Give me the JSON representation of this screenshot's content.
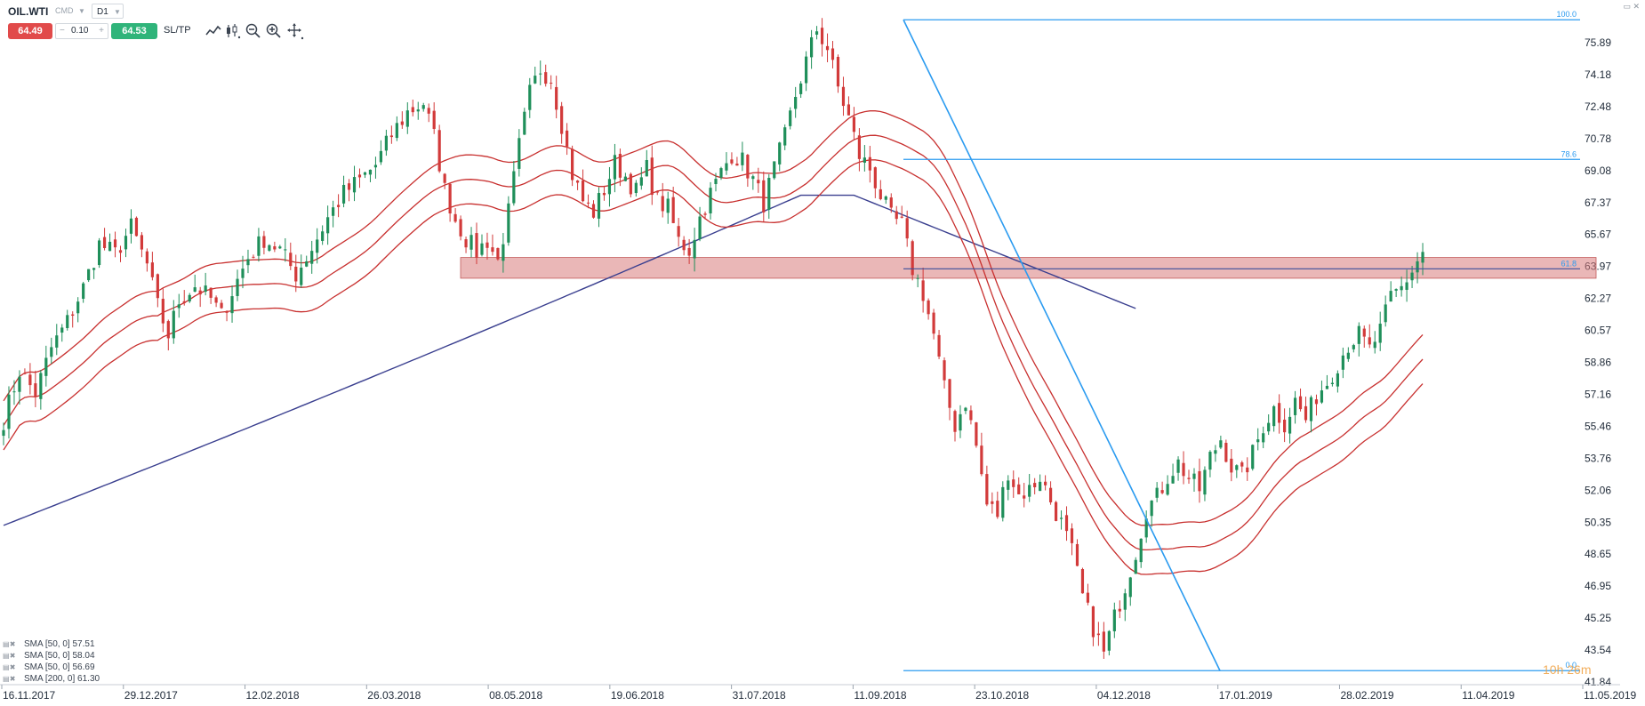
{
  "toolbar": {
    "symbol": "OIL.WTI",
    "market": "CMD",
    "timeframe": "D1",
    "sell_price": "64.49",
    "spread": "0.10",
    "spread_minus": "−",
    "spread_plus": "+",
    "buy_price": "64.53",
    "sltp_label": "SL/TP",
    "tool_icons": [
      "line-chart-icon",
      "candles-icon",
      "zoom-out-icon",
      "zoom-in-icon",
      "crosshair-icon"
    ],
    "window_controls": "▭ ✕"
  },
  "colors": {
    "sell": "#e14a4a",
    "buy": "#2fb47a",
    "bull_candle": "#1f8f5a",
    "bear_candle": "#d23a3a",
    "sma50": "#c8302f",
    "sma200": "#3a3f8f",
    "fib": "#2b9bf0",
    "zone": "#d97b7b"
  },
  "chart_data": {
    "type": "candlestick",
    "symbol": "OIL.WTI",
    "timeframe": "D1",
    "y_ticks": [
      "75.89",
      "74.18",
      "72.48",
      "70.78",
      "69.08",
      "67.37",
      "65.67",
      "63.97",
      "62.27",
      "60.57",
      "58.86",
      "57.16",
      "55.46",
      "53.76",
      "52.06",
      "50.35",
      "48.65",
      "46.95",
      "45.25",
      "43.54",
      "41.84"
    ],
    "ylim": [
      41.84,
      77.0
    ],
    "x_ticks": [
      "16.11.2017",
      "29.12.2017",
      "12.02.2018",
      "26.03.2018",
      "08.05.2018",
      "19.06.2018",
      "31.07.2018",
      "11.09.2018",
      "23.10.2018",
      "04.12.2018",
      "17.01.2019",
      "28.02.2019",
      "11.04.2019",
      "11.05.2019"
    ],
    "price_path": [
      [
        0,
        55.6
      ],
      [
        3,
        58.2
      ],
      [
        6,
        57.0
      ],
      [
        9,
        59.4
      ],
      [
        12,
        60.8
      ],
      [
        15,
        62.6
      ],
      [
        18,
        64.9
      ],
      [
        21,
        64.4
      ],
      [
        24,
        65.8
      ],
      [
        27,
        63.8
      ],
      [
        29,
        61.6
      ],
      [
        31,
        60.1
      ],
      [
        33,
        61.9
      ],
      [
        36,
        62.7
      ],
      [
        39,
        62.0
      ],
      [
        41,
        61.1
      ],
      [
        43,
        62.4
      ],
      [
        46,
        64.2
      ],
      [
        49,
        65.2
      ],
      [
        52,
        64.6
      ],
      [
        55,
        63.3
      ],
      [
        58,
        64.7
      ],
      [
        61,
        66.3
      ],
      [
        64,
        67.6
      ],
      [
        67,
        68.3
      ],
      [
        70,
        69.1
      ],
      [
        73,
        70.7
      ],
      [
        76,
        71.9
      ],
      [
        79,
        72.4
      ],
      [
        81,
        70.6
      ],
      [
        83,
        67.8
      ],
      [
        85,
        66.2
      ],
      [
        87,
        65.2
      ],
      [
        89,
        64.5
      ],
      [
        91,
        65.1
      ],
      [
        93,
        64.0
      ],
      [
        95,
        66.6
      ],
      [
        97,
        70.1
      ],
      [
        99,
        72.9
      ],
      [
        101,
        74.2
      ],
      [
        103,
        73.7
      ],
      [
        105,
        71.3
      ],
      [
        107,
        68.6
      ],
      [
        109,
        67.2
      ],
      [
        111,
        66.6
      ],
      [
        113,
        67.8
      ],
      [
        115,
        69.2
      ],
      [
        117,
        68.5
      ],
      [
        119,
        67.7
      ],
      [
        121,
        68.9
      ],
      [
        123,
        67.2
      ],
      [
        125,
        66.8
      ],
      [
        127,
        65.1
      ],
      [
        129,
        64.6
      ],
      [
        131,
        66.3
      ],
      [
        133,
        67.6
      ],
      [
        135,
        68.7
      ],
      [
        137,
        69.7
      ],
      [
        139,
        69.3
      ],
      [
        141,
        68.3
      ],
      [
        143,
        67.1
      ],
      [
        145,
        68.9
      ],
      [
        147,
        70.6
      ],
      [
        149,
        72.8
      ],
      [
        151,
        74.6
      ],
      [
        153,
        76.3
      ],
      [
        155,
        75.3
      ],
      [
        157,
        73.2
      ],
      [
        159,
        71.6
      ],
      [
        161,
        69.6
      ],
      [
        163,
        68.9
      ],
      [
        165,
        67.5
      ],
      [
        167,
        66.3
      ],
      [
        169,
        65.9
      ],
      [
        171,
        63.6
      ],
      [
        173,
        62.3
      ],
      [
        175,
        60.1
      ],
      [
        177,
        57.2
      ],
      [
        179,
        55.3
      ],
      [
        181,
        56.6
      ],
      [
        183,
        54.2
      ],
      [
        185,
        51.1
      ],
      [
        187,
        50.6
      ],
      [
        189,
        52.9
      ],
      [
        191,
        51.6
      ],
      [
        193,
        51.9
      ],
      [
        195,
        52.6
      ],
      [
        197,
        51.3
      ],
      [
        199,
        50.1
      ],
      [
        201,
        48.6
      ],
      [
        203,
        46.2
      ],
      [
        205,
        44.6
      ],
      [
        207,
        43.2
      ],
      [
        209,
        45.1
      ],
      [
        211,
        46.8
      ],
      [
        213,
        48.6
      ],
      [
        215,
        50.9
      ],
      [
        217,
        51.5
      ],
      [
        219,
        52.6
      ],
      [
        221,
        53.3
      ],
      [
        223,
        52.5
      ],
      [
        225,
        51.9
      ],
      [
        227,
        53.6
      ],
      [
        229,
        54.6
      ],
      [
        231,
        53.1
      ],
      [
        233,
        52.6
      ],
      [
        235,
        53.8
      ],
      [
        237,
        55.3
      ],
      [
        239,
        56.2
      ],
      [
        241,
        55.4
      ],
      [
        243,
        56.6
      ],
      [
        245,
        55.6
      ],
      [
        247,
        56.9
      ],
      [
        249,
        57.6
      ],
      [
        251,
        58.6
      ],
      [
        253,
        59.6
      ],
      [
        255,
        60.1
      ],
      [
        257,
        59.3
      ],
      [
        259,
        60.3
      ],
      [
        261,
        62.1
      ],
      [
        263,
        62.6
      ],
      [
        265,
        63.5
      ],
      [
        267,
        64.5
      ]
    ],
    "series": [
      {
        "name": "SMA [50, 0]",
        "value": "57.51"
      },
      {
        "name": "SMA [50, 0]",
        "value": "58.04"
      },
      {
        "name": "SMA [50, 0]",
        "value": "56.69"
      },
      {
        "name": "SMA [200, 0]",
        "value": "61.30"
      }
    ],
    "fibonacci": [
      {
        "label": "100.0",
        "price": 76.8
      },
      {
        "label": "78.6",
        "price": 69.4
      },
      {
        "label": "61.8",
        "price": 63.6
      },
      {
        "label": "0.0",
        "price": 42.3
      }
    ],
    "zone": {
      "from": 63.1,
      "to": 64.2
    },
    "watermark": "10h 26m"
  }
}
